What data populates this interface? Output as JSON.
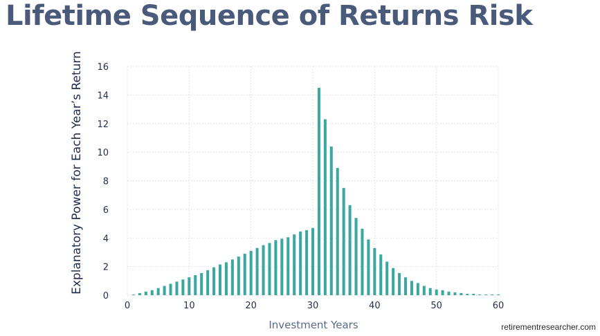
{
  "slide": {
    "title": "Lifetime Sequence of Returns Risk",
    "credit": "retirementresearcher.com"
  },
  "colors": {
    "title": "#4a5a7a",
    "bar": "#3aa8a1",
    "axis_text": "#1f2d4d",
    "axis_label": "#5a6a8a",
    "grid": "#d9d9d9"
  },
  "chart_data": {
    "type": "bar",
    "title": "",
    "xlabel": "Investment Years",
    "ylabel": "Explanatory Power for Each Year’s Return",
    "xlim": [
      0,
      60
    ],
    "ylim": [
      0,
      16
    ],
    "xticks": [
      0,
      10,
      20,
      30,
      40,
      50,
      60
    ],
    "yticks": [
      0,
      2,
      4,
      6,
      8,
      10,
      12,
      14,
      16
    ],
    "grid": true,
    "legend": "none",
    "x": [
      1,
      2,
      3,
      4,
      5,
      6,
      7,
      8,
      9,
      10,
      11,
      12,
      13,
      14,
      15,
      16,
      17,
      18,
      19,
      20,
      21,
      22,
      23,
      24,
      25,
      26,
      27,
      28,
      29,
      30,
      31,
      32,
      33,
      34,
      35,
      36,
      37,
      38,
      39,
      40,
      41,
      42,
      43,
      44,
      45,
      46,
      47,
      48,
      49,
      50,
      51,
      52,
      53,
      54,
      55,
      56,
      57,
      58,
      59,
      60
    ],
    "values": [
      0.05,
      0.15,
      0.25,
      0.35,
      0.5,
      0.65,
      0.8,
      0.95,
      1.1,
      1.25,
      1.4,
      1.55,
      1.75,
      1.95,
      2.15,
      2.3,
      2.5,
      2.7,
      2.9,
      3.1,
      3.3,
      3.5,
      3.65,
      3.85,
      3.95,
      4.05,
      4.25,
      4.45,
      4.55,
      4.7,
      14.5,
      12.3,
      10.4,
      8.9,
      7.5,
      6.3,
      5.4,
      4.65,
      3.9,
      3.3,
      2.85,
      2.35,
      1.9,
      1.55,
      1.25,
      1.0,
      0.85,
      0.65,
      0.5,
      0.4,
      0.35,
      0.25,
      0.2,
      0.15,
      0.1,
      0.1,
      0.05,
      0.05,
      0.05,
      0.05
    ]
  }
}
